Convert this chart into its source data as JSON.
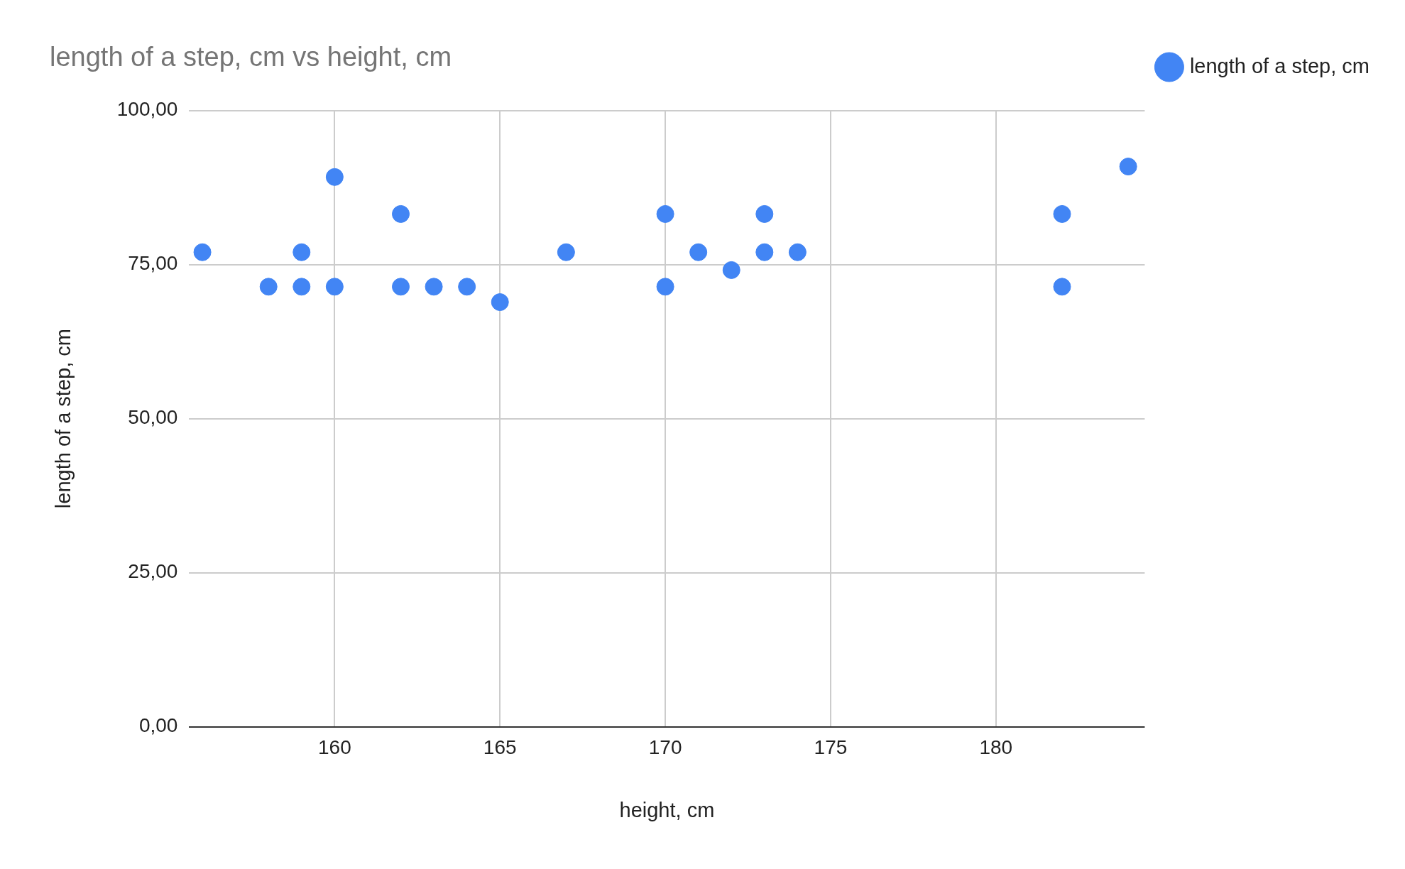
{
  "chart_data": {
    "type": "scatter",
    "title": "length of a step, cm vs height, cm",
    "xlabel": "height, cm",
    "ylabel": "length of a step, cm",
    "x": [
      156,
      158,
      159,
      159,
      160,
      160,
      162,
      162,
      163,
      164,
      165,
      167,
      170,
      170,
      171,
      172,
      173,
      173,
      174,
      182,
      182,
      184
    ],
    "series": [
      {
        "name": "length of a step, cm",
        "color": "#4285f4",
        "values": [
          77,
          71.4,
          77,
          71.4,
          89.2,
          71.4,
          83.2,
          71.4,
          71.4,
          71.4,
          68.9,
          77,
          83.2,
          71.4,
          77,
          74.1,
          83.2,
          77,
          77,
          83.2,
          71.4,
          90.9
        ]
      }
    ],
    "xlim": [
      155.6,
      184.5
    ],
    "xticks": [
      160,
      165,
      170,
      175,
      180
    ],
    "ylim": [
      0,
      100
    ],
    "yticks": [
      {
        "value": 0,
        "label": "0,00"
      },
      {
        "value": 25,
        "label": "25,00"
      },
      {
        "value": 50,
        "label": "50,00"
      },
      {
        "value": 75,
        "label": "75,00"
      },
      {
        "value": 100,
        "label": "100,00"
      }
    ],
    "grid": true,
    "legend": "top right",
    "marker": "circle"
  }
}
